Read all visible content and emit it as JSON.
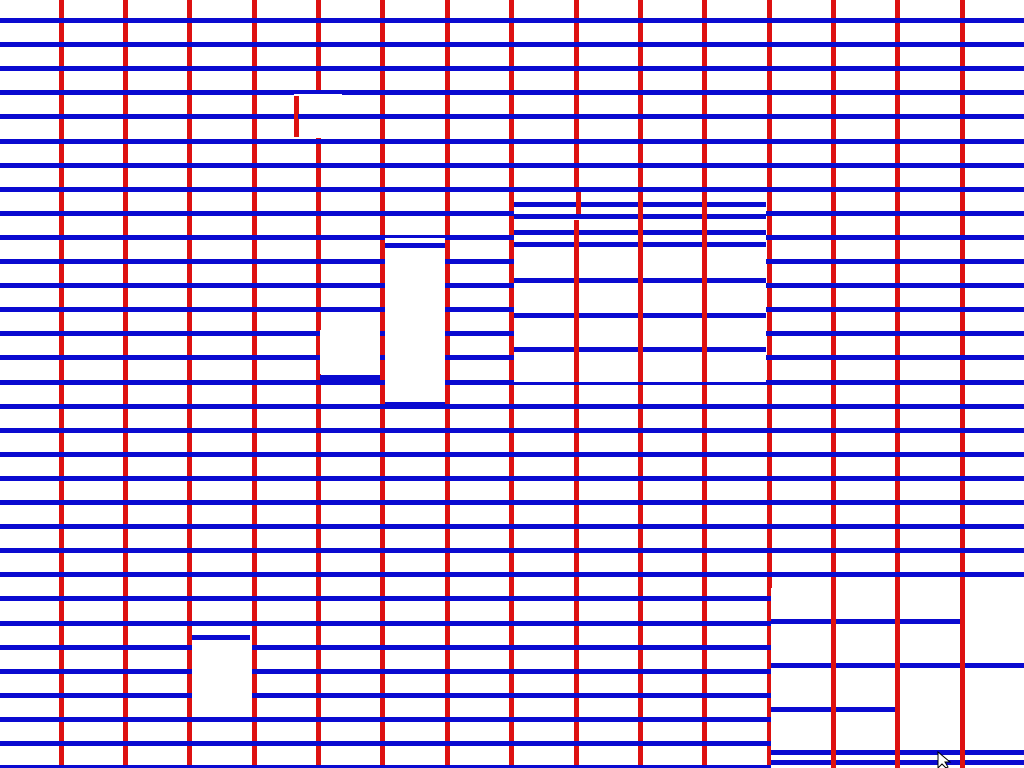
{
  "colors": {
    "background": "#ffffff",
    "vertical_lines": "#dd1111",
    "horizontal_lines": "#0a0ad0"
  },
  "cursor_icon": "arrow-pointer-icon"
}
